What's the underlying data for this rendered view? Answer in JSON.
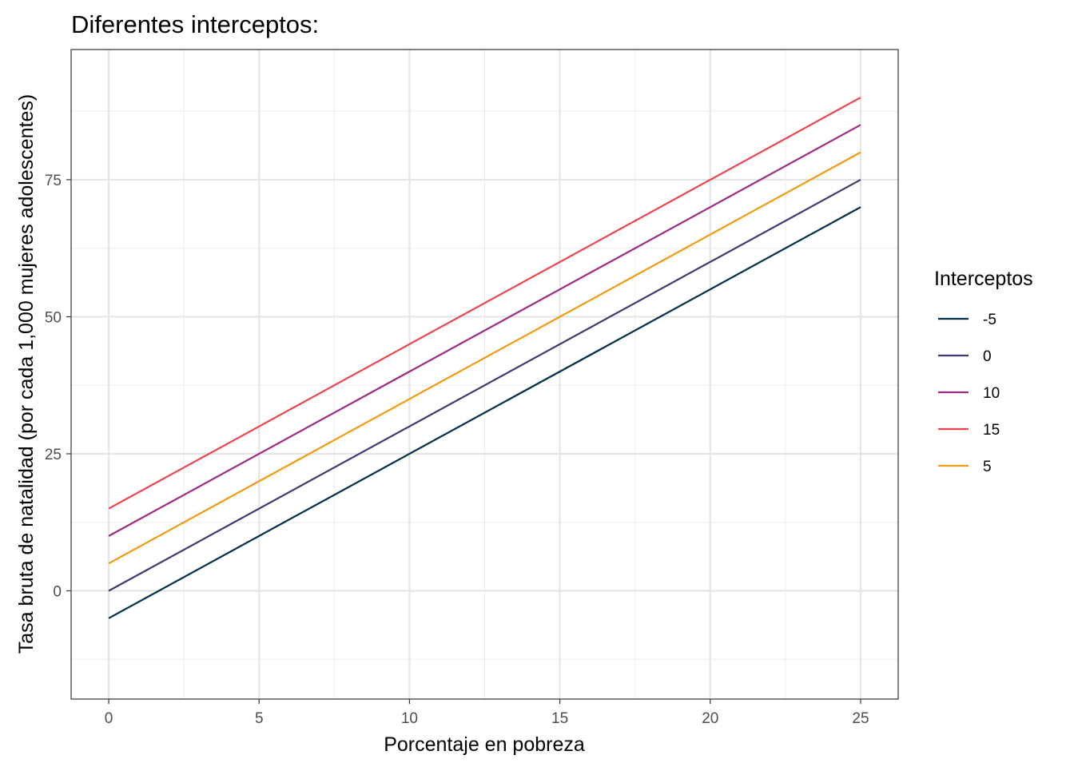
{
  "chart_data": {
    "type": "line",
    "title": "Diferentes interceptos:",
    "xlabel": "Porcentaje en pobreza",
    "ylabel": "Tasa bruta de natalidad (por cada 1,000 mujeres adolescentes)",
    "xlim": [
      -1.25,
      26.25
    ],
    "ylim": [
      -19.75,
      98.75
    ],
    "xticks": [
      0,
      5,
      10,
      15,
      20,
      25
    ],
    "yticks": [
      0,
      25,
      50,
      75
    ],
    "grid": true,
    "legend": {
      "title": "Interceptos",
      "placement": "right"
    },
    "series": [
      {
        "name": "-5",
        "color": "#003049",
        "x": [
          0,
          25
        ],
        "y": [
          -5,
          70
        ]
      },
      {
        "name": "0",
        "color": "#3d3b72",
        "x": [
          0,
          25
        ],
        "y": [
          0,
          75
        ]
      },
      {
        "name": "10",
        "color": "#9e2a81",
        "x": [
          0,
          25
        ],
        "y": [
          10,
          85
        ]
      },
      {
        "name": "15",
        "color": "#f0434d",
        "x": [
          0,
          25
        ],
        "y": [
          15,
          90
        ]
      },
      {
        "name": "5",
        "color": "#f59a0f",
        "x": [
          0,
          25
        ],
        "y": [
          5,
          80
        ]
      }
    ]
  }
}
